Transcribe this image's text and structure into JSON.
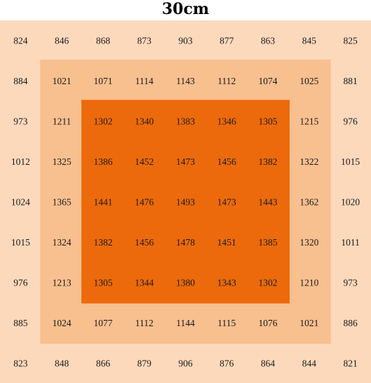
{
  "colors": {
    "outer": "#fdd9bc",
    "middle": "#f8bf8f",
    "inner": "#ec6a0b",
    "text": "#1a1a1a"
  },
  "chart_data": {
    "type": "heatmap",
    "title": "30cm",
    "rows": [
      [
        824,
        846,
        868,
        873,
        903,
        877,
        863,
        845,
        825
      ],
      [
        884,
        1021,
        1071,
        1114,
        1143,
        1112,
        1074,
        1025,
        881
      ],
      [
        973,
        1211,
        1302,
        1340,
        1383,
        1346,
        1305,
        1215,
        976
      ],
      [
        1012,
        1325,
        1386,
        1452,
        1473,
        1456,
        1382,
        1322,
        1015
      ],
      [
        1024,
        1365,
        1441,
        1476,
        1493,
        1473,
        1443,
        1362,
        1020
      ],
      [
        1015,
        1324,
        1382,
        1456,
        1478,
        1451,
        1385,
        1320,
        1011
      ],
      [
        976,
        1213,
        1305,
        1344,
        1380,
        1343,
        1302,
        1210,
        973
      ],
      [
        885,
        1024,
        1077,
        1112,
        1144,
        1115,
        1076,
        1021,
        886
      ],
      [
        823,
        848,
        866,
        879,
        906,
        876,
        864,
        844,
        821
      ]
    ]
  }
}
